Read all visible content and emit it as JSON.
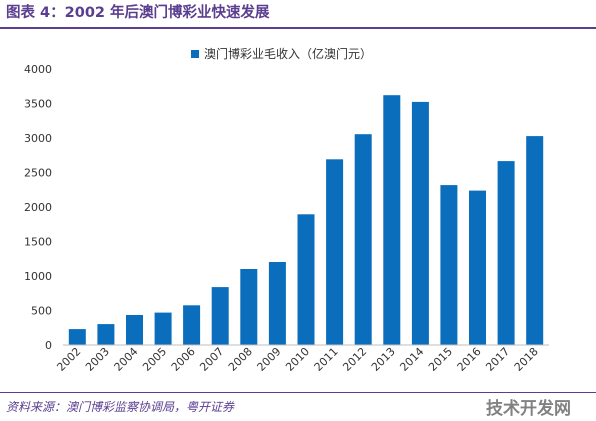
{
  "figure": {
    "title": "图表 4：2002 年后澳门博彩业快速发展",
    "source": "资料来源：澳门博彩监察协调局，粤开证券",
    "watermark": "技术开发网"
  },
  "colors": {
    "bar": "#0A6EBD",
    "title": "#5A3E8F"
  },
  "chart_data": {
    "type": "bar",
    "title": "",
    "xlabel": "",
    "ylabel": "",
    "ylim": [
      0,
      4000
    ],
    "yticks": [
      0,
      500,
      1000,
      1500,
      2000,
      2500,
      3000,
      3500,
      4000
    ],
    "grid": false,
    "legend_position": "top-center",
    "categories": [
      "2002",
      "2003",
      "2004",
      "2005",
      "2006",
      "2007",
      "2008",
      "2009",
      "2010",
      "2011",
      "2012",
      "2013",
      "2014",
      "2015",
      "2016",
      "2017",
      "2018"
    ],
    "series": [
      {
        "name": "澳门博彩业毛收入（亿澳门元）",
        "values": [
          231,
          303,
          435,
          470,
          575,
          839,
          1101,
          1203,
          1894,
          2692,
          3055,
          3620,
          3523,
          2318,
          2238,
          2665,
          3028
        ]
      }
    ]
  }
}
